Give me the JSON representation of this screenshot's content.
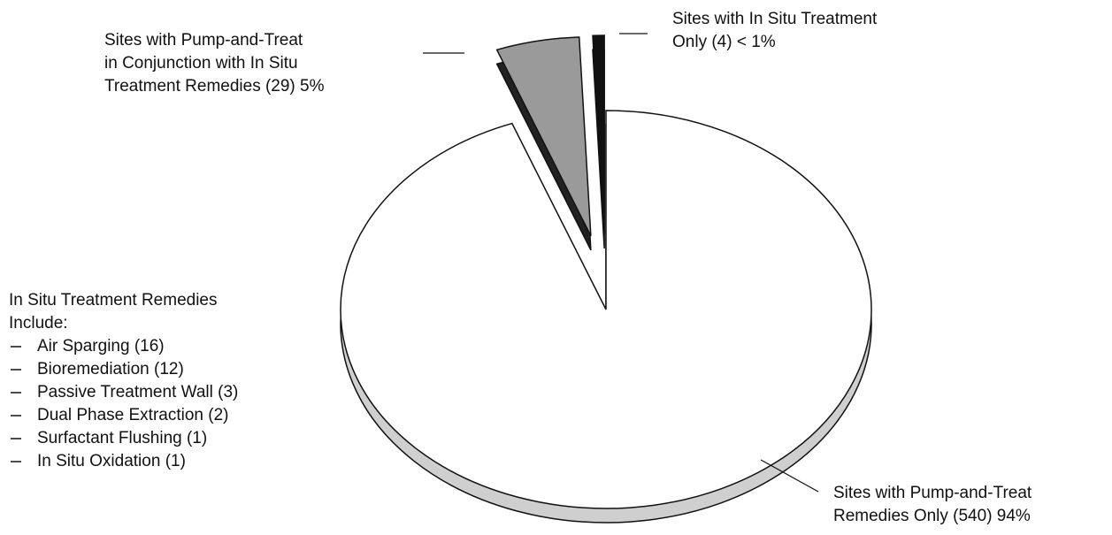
{
  "chart_data": {
    "type": "pie",
    "categories": [
      [
        "Sites with Pump-and-Treat",
        "Remedies Only (540) 94%"
      ],
      [
        "Sites with Pump-and-Treat",
        "in Conjunction with In Situ",
        "Treatment Remedies (29) 5%"
      ],
      [
        "Sites with In Situ Treatment",
        "Only (4) < 1%"
      ]
    ],
    "values": [
      540,
      29,
      4
    ],
    "colors": [
      "#ffffff",
      "#9a9a9a",
      "#111111"
    ],
    "note": {
      "heading": [
        "In Situ Treatment Remedies",
        "Include:"
      ],
      "items": [
        "Air Sparging (16)",
        "Bioremediation (12)",
        "Passive Treatment Wall (3)",
        "Dual Phase Extraction (2)",
        "Surfactant Flushing (1)",
        "In Situ Oxidation (1)"
      ]
    }
  }
}
